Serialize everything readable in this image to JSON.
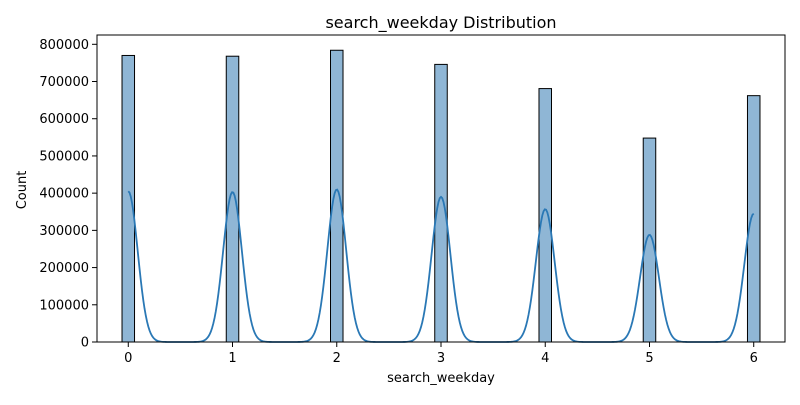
{
  "chart_data": {
    "type": "bar",
    "title": "search_weekday Distribution",
    "xlabel": "search_weekday",
    "ylabel": "Count",
    "xlim": [
      -0.3,
      6.3
    ],
    "ylim": [
      0,
      825000
    ],
    "x_ticks": [
      0,
      1,
      2,
      3,
      4,
      5,
      6
    ],
    "x_tick_labels": [
      "0",
      "1",
      "2",
      "3",
      "4",
      "5",
      "6"
    ],
    "y_ticks": [
      0,
      100000,
      200000,
      300000,
      400000,
      500000,
      600000,
      700000,
      800000
    ],
    "y_tick_labels": [
      "0",
      "100000",
      "200000",
      "300000",
      "400000",
      "500000",
      "600000",
      "700000",
      "800000"
    ],
    "bin_width": 0.12,
    "categories": [
      0,
      1,
      2,
      3,
      4,
      5,
      6
    ],
    "values": [
      770000,
      768000,
      784000,
      746000,
      681000,
      548000,
      662000
    ],
    "kde": {
      "peaks": [
        405000,
        403000,
        410000,
        390000,
        357000,
        288000,
        345000
      ],
      "bandwidth": 0.09
    },
    "grid": false,
    "legend": "none",
    "colors": {
      "bar_fill": "#8fb6d5",
      "bar_edge": "#000000",
      "kde_line": "#2a78b5"
    }
  }
}
